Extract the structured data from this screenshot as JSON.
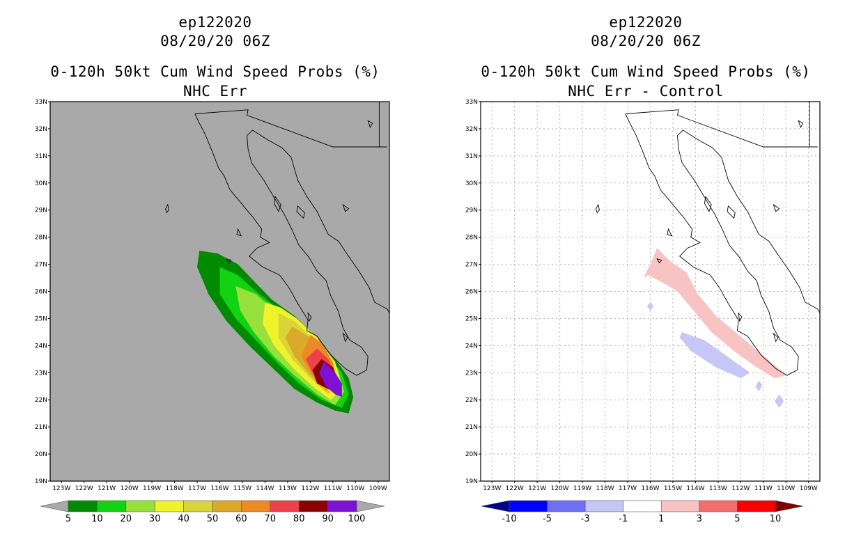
{
  "chart_data": [
    {
      "type": "heatmap",
      "storm_id": "ep122020",
      "datetime": "08/20/20 06Z",
      "title": "0-120h 50kt Cum Wind Speed Probs (%)",
      "subtitle": "NHC Err",
      "lon_range": [
        -123.5,
        -108.5
      ],
      "lat_range": [
        19,
        33
      ],
      "lon_ticks": [
        "123W",
        "122W",
        "121W",
        "120W",
        "119W",
        "118W",
        "117W",
        "116W",
        "115W",
        "114W",
        "113W",
        "112W",
        "111W",
        "110W",
        "109W"
      ],
      "lat_ticks": [
        "19N",
        "20N",
        "21N",
        "22N",
        "23N",
        "24N",
        "25N",
        "26N",
        "27N",
        "28N",
        "29N",
        "30N",
        "31N",
        "32N",
        "33N"
      ],
      "background": "#a9a9a9",
      "gridlines": false,
      "colorbar": {
        "labels": [
          "5",
          "10",
          "20",
          "30",
          "40",
          "50",
          "60",
          "70",
          "80",
          "90",
          "100"
        ],
        "colors": [
          "#008a00",
          "#12d312",
          "#98e03c",
          "#f0f22a",
          "#d9d43a",
          "#dcaa2a",
          "#ec8a26",
          "#f0414b",
          "#8b0000",
          "#7d12d6"
        ],
        "end_colors": [
          "#a9a9a9",
          "#a9a9a9"
        ]
      },
      "contours": [
        {
          "level": "5",
          "color": "#008a00",
          "polygon": [
            [
              -116.9,
              27.5
            ],
            [
              -116.1,
              27.4
            ],
            [
              -115.2,
              27.0
            ],
            [
              -114.4,
              26.3
            ],
            [
              -113.7,
              25.7
            ],
            [
              -112.7,
              25.1
            ],
            [
              -111.7,
              24.3
            ],
            [
              -110.9,
              23.5
            ],
            [
              -110.3,
              22.8
            ],
            [
              -110.1,
              22.1
            ],
            [
              -110.3,
              21.5
            ],
            [
              -110.9,
              21.6
            ],
            [
              -111.7,
              21.9
            ],
            [
              -112.7,
              22.4
            ],
            [
              -113.7,
              23.2
            ],
            [
              -114.7,
              24.0
            ],
            [
              -115.7,
              24.9
            ],
            [
              -116.5,
              25.9
            ],
            [
              -117.0,
              26.9
            ]
          ]
        },
        {
          "level": "10",
          "color": "#12d312",
          "polygon": [
            [
              -116.0,
              26.9
            ],
            [
              -115.2,
              26.6
            ],
            [
              -114.4,
              26.0
            ],
            [
              -113.5,
              25.4
            ],
            [
              -112.5,
              24.7
            ],
            [
              -111.5,
              23.9
            ],
            [
              -110.6,
              23.0
            ],
            [
              -110.3,
              22.2
            ],
            [
              -110.6,
              21.7
            ],
            [
              -111.5,
              22.0
            ],
            [
              -112.5,
              22.6
            ],
            [
              -113.5,
              23.4
            ],
            [
              -114.4,
              24.2
            ],
            [
              -115.3,
              25.0
            ],
            [
              -116.0,
              25.9
            ]
          ]
        },
        {
          "level": "20",
          "color": "#98e03c",
          "polygon": [
            [
              -115.3,
              26.2
            ],
            [
              -114.4,
              25.9
            ],
            [
              -113.6,
              25.3
            ],
            [
              -112.7,
              24.7
            ],
            [
              -111.7,
              24.0
            ],
            [
              -110.8,
              23.2
            ],
            [
              -110.5,
              22.3
            ],
            [
              -110.9,
              21.8
            ],
            [
              -111.7,
              22.2
            ],
            [
              -112.7,
              22.9
            ],
            [
              -113.6,
              23.6
            ],
            [
              -114.5,
              24.5
            ],
            [
              -115.1,
              25.3
            ]
          ]
        },
        {
          "level": "30",
          "color": "#f0f22a",
          "polygon": [
            [
              -114.0,
              25.6
            ],
            [
              -113.3,
              25.4
            ],
            [
              -112.6,
              25.0
            ],
            [
              -111.7,
              24.3
            ],
            [
              -110.9,
              23.4
            ],
            [
              -110.6,
              22.4
            ],
            [
              -111.1,
              22.0
            ],
            [
              -111.9,
              22.5
            ],
            [
              -112.8,
              23.2
            ],
            [
              -113.6,
              24.0
            ],
            [
              -114.1,
              24.8
            ]
          ]
        },
        {
          "level": "40",
          "color": "#d9d43a",
          "polygon": [
            [
              -113.4,
              25.2
            ],
            [
              -112.7,
              24.9
            ],
            [
              -111.8,
              24.2
            ],
            [
              -111.0,
              23.4
            ],
            [
              -110.7,
              22.5
            ],
            [
              -111.2,
              22.2
            ],
            [
              -112.0,
              22.8
            ],
            [
              -112.8,
              23.5
            ],
            [
              -113.4,
              24.3
            ]
          ]
        },
        {
          "level": "50",
          "color": "#dcaa2a",
          "polygon": [
            [
              -112.8,
              24.7
            ],
            [
              -112.0,
              24.3
            ],
            [
              -111.2,
              23.5
            ],
            [
              -110.8,
              22.6
            ],
            [
              -111.3,
              22.3
            ],
            [
              -112.0,
              22.9
            ],
            [
              -112.7,
              23.6
            ],
            [
              -113.1,
              24.3
            ]
          ]
        },
        {
          "level": "60",
          "color": "#ec8a26",
          "polygon": [
            [
              -112.0,
              24.4
            ],
            [
              -111.5,
              24.1
            ],
            [
              -111.0,
              23.4
            ],
            [
              -110.8,
              22.6
            ],
            [
              -111.3,
              22.4
            ],
            [
              -111.9,
              22.9
            ],
            [
              -112.4,
              23.6
            ]
          ]
        },
        {
          "level": "70",
          "color": "#f0414b",
          "polygon": [
            [
              -111.7,
              23.9
            ],
            [
              -111.2,
              23.5
            ],
            [
              -110.8,
              22.8
            ],
            [
              -110.9,
              22.3
            ],
            [
              -111.4,
              22.5
            ],
            [
              -111.9,
              23.0
            ],
            [
              -112.2,
              23.5
            ]
          ]
        },
        {
          "level": "80",
          "color": "#8b0000",
          "polygon": [
            [
              -111.5,
              23.5
            ],
            [
              -111.0,
              23.2
            ],
            [
              -110.8,
              22.8
            ],
            [
              -110.8,
              22.3
            ],
            [
              -111.2,
              22.4
            ],
            [
              -111.7,
              22.6
            ],
            [
              -111.9,
              23.1
            ]
          ]
        },
        {
          "level": "90",
          "color": "#7d12d6",
          "polygon": [
            [
              -111.4,
              23.4
            ],
            [
              -110.9,
              23.0
            ],
            [
              -110.6,
              22.6
            ],
            [
              -110.6,
              22.1
            ],
            [
              -110.9,
              22.2
            ],
            [
              -111.3,
              22.5
            ],
            [
              -111.6,
              23.0
            ]
          ]
        }
      ]
    },
    {
      "type": "heatmap",
      "storm_id": "ep122020",
      "datetime": "08/20/20 06Z",
      "title": "0-120h 50kt Cum Wind Speed Probs (%)",
      "subtitle": "NHC Err - Control",
      "lon_range": [
        -123.5,
        -108.5
      ],
      "lat_range": [
        19,
        33
      ],
      "lon_ticks": [
        "123W",
        "122W",
        "121W",
        "120W",
        "119W",
        "118W",
        "117W",
        "116W",
        "115W",
        "114W",
        "113W",
        "112W",
        "111W",
        "110W",
        "109W"
      ],
      "lat_ticks": [
        "19N",
        "20N",
        "21N",
        "22N",
        "23N",
        "24N",
        "25N",
        "26N",
        "27N",
        "28N",
        "29N",
        "30N",
        "31N",
        "32N",
        "33N"
      ],
      "background": "#ffffff",
      "gridlines": true,
      "colorbar": {
        "labels": [
          "-10",
          "-5",
          "-3",
          "-1",
          "1",
          "3",
          "5",
          "10"
        ],
        "colors": [
          "#0000ff",
          "#6f6ff5",
          "#c6c6f7",
          "#ffffff",
          "#f7c3c3",
          "#f46e6e",
          "#f70000"
        ],
        "end_colors": [
          "#00008b",
          "#7f0000"
        ]
      },
      "contours": [
        {
          "level": "1 to 3",
          "color": "#f7c3c3",
          "polygon": [
            [
              -115.7,
              27.6
            ],
            [
              -115.1,
              27.1
            ],
            [
              -114.4,
              26.7
            ],
            [
              -113.9,
              25.9
            ],
            [
              -113.1,
              25.1
            ],
            [
              -112.1,
              24.4
            ],
            [
              -111.1,
              23.7
            ],
            [
              -110.4,
              23.2
            ],
            [
              -110.0,
              22.9
            ],
            [
              -110.5,
              22.8
            ],
            [
              -111.3,
              23.2
            ],
            [
              -112.3,
              23.8
            ],
            [
              -113.3,
              24.5
            ],
            [
              -114.1,
              25.3
            ],
            [
              -114.8,
              26.0
            ],
            [
              -115.4,
              26.3
            ],
            [
              -116.1,
              26.6
            ],
            [
              -116.3,
              26.5
            ],
            [
              -116.0,
              27.0
            ]
          ]
        },
        {
          "level": "-3 to -1",
          "color": "#c6c6f7",
          "polygon": [
            [
              -114.6,
              24.5
            ],
            [
              -113.6,
              24.2
            ],
            [
              -112.6,
              23.6
            ],
            [
              -111.6,
              23.0
            ],
            [
              -112.0,
              22.8
            ],
            [
              -113.1,
              23.2
            ],
            [
              -114.2,
              23.8
            ],
            [
              -114.7,
              24.3
            ]
          ]
        },
        {
          "level": "-3 to -1",
          "color": "#c6c6f7",
          "polygon": [
            [
              -116.0,
              25.6
            ],
            [
              -115.85,
              25.45
            ],
            [
              -116.0,
              25.3
            ],
            [
              -116.15,
              25.45
            ]
          ]
        },
        {
          "level": "-3 to -1",
          "color": "#c6c6f7",
          "polygon": [
            [
              -111.2,
              22.7
            ],
            [
              -111.05,
              22.55
            ],
            [
              -111.2,
              22.3
            ],
            [
              -111.35,
              22.5
            ]
          ]
        },
        {
          "level": "-3 to -1",
          "color": "#c6c6f7",
          "polygon": [
            [
              -110.3,
              22.2
            ],
            [
              -110.1,
              21.95
            ],
            [
              -110.3,
              21.7
            ],
            [
              -110.5,
              21.95
            ]
          ]
        }
      ]
    }
  ]
}
